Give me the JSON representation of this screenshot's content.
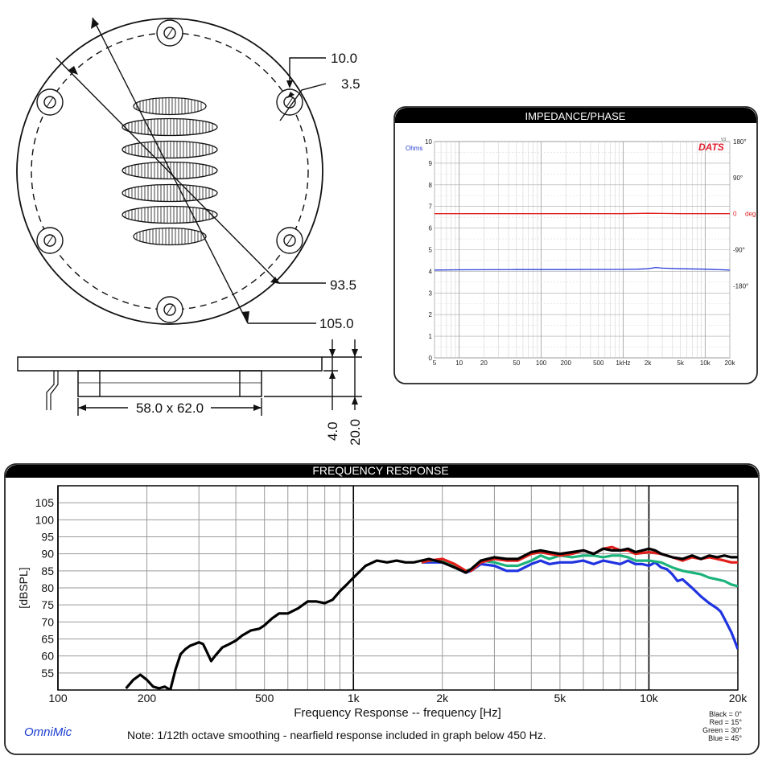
{
  "drawing": {
    "dim_outer": "105.0",
    "dim_bolt_circle": "93.5",
    "dim_counterbore": "10.0",
    "dim_hole": "3.5",
    "dim_cutout": "58.0 x 62.0",
    "dim_flange": "4.0",
    "dim_depth": "20.0"
  },
  "impedance": {
    "header": "IMPEDANCE/PHASE",
    "left_unit": "Ohms",
    "right_unit": "deg",
    "logo": "DATS",
    "logo_sup": "V3",
    "colors": {
      "magnitude": "#2a3fd9",
      "phase": "#e02020",
      "grid": "#bfbfbf"
    }
  },
  "frequency": {
    "header": "FREQUENCY RESPONSE",
    "brand": "OmniMic",
    "note": "Note:  1/12th octave smoothing - nearfield response included in graph below 450 Hz.",
    "colors": {
      "black": "#000000",
      "red": "#e3201b",
      "green": "#1bb37a",
      "blue": "#1f33e0"
    }
  },
  "chart_data": [
    {
      "type": "line",
      "title": "IMPEDANCE/PHASE",
      "xscale": "log",
      "xlim": [
        5,
        20000
      ],
      "x_ticks": [
        5,
        10,
        20,
        50,
        100,
        200,
        500,
        1000,
        2000,
        5000,
        10000,
        20000
      ],
      "x_tick_labels": [
        "5",
        "10",
        "20",
        "50",
        "100",
        "200",
        "500",
        "1kHz",
        "2k",
        "5k",
        "10k",
        "20k"
      ],
      "ylabel": "Ohms",
      "ylim": [
        0,
        10
      ],
      "y_ticks": [
        0,
        1,
        2,
        3,
        4,
        5,
        6,
        7,
        8,
        9,
        10
      ],
      "y_tick_labels": [
        "0",
        "1",
        "2",
        "3",
        "4",
        "5",
        "6",
        "7",
        "8",
        "9",
        "10"
      ],
      "y2label": "deg",
      "y2lim": [
        -360,
        180
      ],
      "y2_ticks": [
        180,
        90,
        0,
        -90,
        -180
      ],
      "y2_tick_labels": [
        "180°",
        "90°",
        "0",
        "-90°",
        "-180°"
      ],
      "grid": true,
      "series": [
        {
          "key": "magnitude",
          "axis": "left",
          "x": [
            5,
            10,
            50,
            200,
            1000,
            1500,
            2000,
            2500,
            3000,
            5000,
            10000,
            20000
          ],
          "y": [
            4.06,
            4.07,
            4.08,
            4.08,
            4.09,
            4.1,
            4.12,
            4.18,
            4.15,
            4.12,
            4.1,
            4.06
          ]
        },
        {
          "key": "phase",
          "axis": "right",
          "x": [
            5,
            100,
            1000,
            2000,
            3000,
            5000,
            10000,
            20000
          ],
          "y": [
            0,
            0,
            0,
            1,
            0.5,
            0,
            0,
            0
          ]
        }
      ]
    },
    {
      "type": "line",
      "title": "FREQUENCY RESPONSE",
      "xlabel": "Frequency Response -- frequency [Hz]",
      "ylabel": "[dBSPL]",
      "xscale": "log",
      "xlim": [
        100,
        20000
      ],
      "x_ticks": [
        100,
        200,
        500,
        1000,
        2000,
        5000,
        10000,
        20000
      ],
      "x_tick_labels": [
        "100",
        "200",
        "500",
        "1k",
        "2k",
        "5k",
        "10k",
        "20k"
      ],
      "ylim": [
        50,
        110
      ],
      "y_ticks": [
        55,
        60,
        65,
        70,
        75,
        80,
        85,
        90,
        95,
        100,
        105
      ],
      "y_tick_labels": [
        "55",
        "60",
        "65",
        "70",
        "75",
        "80",
        "85",
        "90",
        "95",
        "100",
        "105"
      ],
      "grid": true,
      "legend": [
        "Black = 0°",
        "Red = 15°",
        "Green = 30°",
        "Blue = 45°"
      ],
      "legend_position": "bottom-right",
      "series": [
        {
          "key": "black",
          "x": [
            170,
            180,
            190,
            200,
            210,
            220,
            230,
            240,
            250,
            260,
            270,
            280,
            290,
            300,
            310,
            320,
            330,
            340,
            360,
            380,
            400,
            420,
            450,
            480,
            500,
            530,
            560,
            600,
            650,
            700,
            750,
            800,
            850,
            900,
            950,
            1000,
            1100,
            1200,
            1300,
            1400,
            1500,
            1600,
            1800,
            2000,
            2200,
            2400,
            2500,
            2700,
            3000,
            3300,
            3600,
            4000,
            4300,
            4600,
            5000,
            5500,
            6000,
            6500,
            7000,
            7500,
            8000,
            8500,
            9000,
            9500,
            10000,
            10500,
            11000,
            12000,
            13000,
            14000,
            15000,
            16000,
            17000,
            18000,
            19000,
            20000
          ],
          "y": [
            50.5,
            53,
            54.5,
            53,
            51,
            50.5,
            51,
            50,
            56,
            60.5,
            62,
            63,
            63.5,
            64,
            63.5,
            61,
            58.5,
            60,
            62.5,
            63.5,
            64.5,
            66,
            67.5,
            68,
            69,
            71,
            72.5,
            72.5,
            74,
            76,
            76,
            75.5,
            76.5,
            79,
            81,
            83,
            86.5,
            88,
            87.5,
            88,
            87.5,
            87.5,
            88.5,
            87.5,
            86,
            84.5,
            85.5,
            88,
            89,
            88.5,
            88.5,
            90.5,
            91,
            90.5,
            90,
            90.5,
            91,
            90,
            91.5,
            91,
            91,
            91.5,
            90.5,
            91,
            91.5,
            91,
            90,
            89,
            88.5,
            89.5,
            88.5,
            89.5,
            89,
            89.5,
            89,
            89
          ]
        },
        {
          "key": "red",
          "x": [
            1700,
            1800,
            2000,
            2200,
            2400,
            2500,
            2700,
            3000,
            3300,
            3600,
            4000,
            4300,
            4600,
            5000,
            5500,
            6000,
            6500,
            7000,
            7500,
            8000,
            8500,
            9000,
            10000,
            11000,
            12000,
            13000,
            14000,
            15000,
            16000,
            17000,
            18000,
            19000,
            20000
          ],
          "y": [
            87.5,
            88,
            88.5,
            87,
            85,
            85,
            87.5,
            88.5,
            88,
            88,
            90,
            90.5,
            90,
            89.5,
            90,
            91,
            90,
            91.5,
            92,
            91,
            91,
            90,
            90.5,
            90,
            89,
            88,
            89,
            88.5,
            89,
            88.5,
            88,
            87.5,
            87.5
          ]
        },
        {
          "key": "green",
          "x": [
            1700,
            1800,
            2000,
            2200,
            2400,
            2500,
            2700,
            3000,
            3300,
            3600,
            4000,
            4300,
            4600,
            5000,
            5500,
            6000,
            6500,
            7000,
            7500,
            8000,
            8500,
            9000,
            10000,
            11000,
            12000,
            13000,
            14000,
            15000,
            16000,
            17000,
            18000,
            19000,
            20000
          ],
          "y": [
            87.5,
            88,
            88,
            86.5,
            85,
            85.5,
            88,
            87.5,
            86.5,
            86.5,
            88,
            89.5,
            88.5,
            89.5,
            89,
            89.5,
            89.5,
            89,
            89.5,
            89.5,
            89,
            88,
            88,
            87.5,
            86,
            85,
            84.5,
            84,
            83,
            82.5,
            82,
            81,
            80.5
          ]
        },
        {
          "key": "blue",
          "x": [
            1700,
            1800,
            2000,
            2200,
            2400,
            2500,
            2700,
            3000,
            3300,
            3600,
            4000,
            4300,
            4600,
            5000,
            5500,
            6000,
            6500,
            7000,
            7500,
            8000,
            8500,
            9000,
            9500,
            10000,
            10500,
            11000,
            11500,
            12000,
            12500,
            13000,
            14000,
            15000,
            16000,
            17000,
            17500,
            18000,
            19000,
            19500,
            20000
          ],
          "y": [
            87.5,
            87.5,
            87.5,
            86,
            84.5,
            85,
            87,
            86.5,
            85,
            85,
            87,
            88,
            87,
            87.5,
            87.5,
            88,
            87,
            88,
            87.5,
            87,
            88,
            87,
            87,
            86.5,
            87.5,
            86,
            85.5,
            84,
            82,
            82.5,
            80,
            77.5,
            75.5,
            74,
            73,
            71,
            67,
            64.5,
            62
          ]
        }
      ]
    }
  ]
}
